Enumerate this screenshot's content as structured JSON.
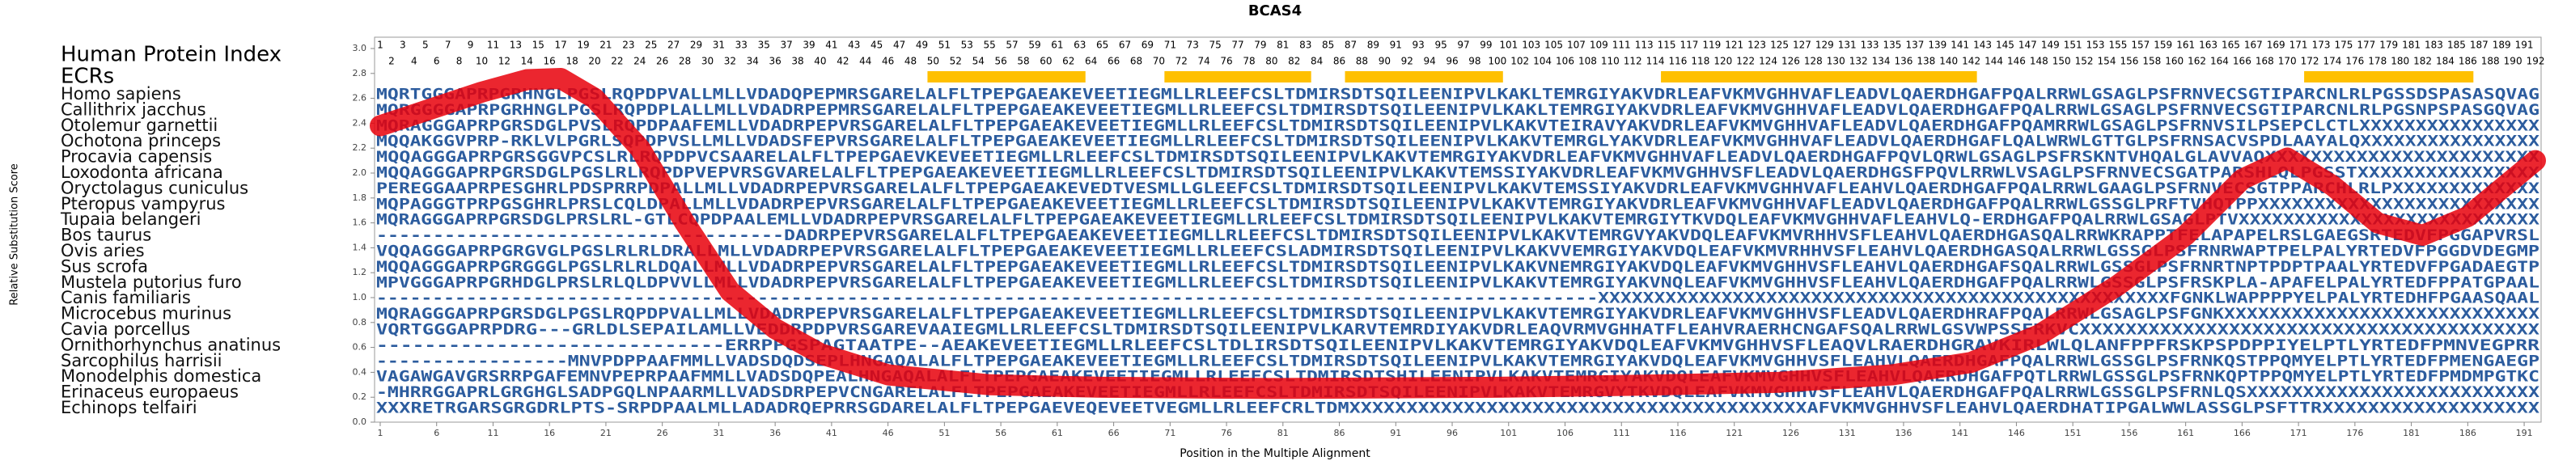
{
  "chart_data": {
    "type": "alignment",
    "title": "BCAS4",
    "xlabel": "Position in the Multiple Alignment",
    "ylabel": "Relative Substitution Score",
    "index_label": "Human Protein Index",
    "ecr_label": "ECRs",
    "xlim": [
      0.5,
      192.5
    ],
    "ylim": [
      0,
      3
    ],
    "xticks": [
      1,
      6,
      11,
      16,
      21,
      26,
      31,
      36,
      41,
      46,
      51,
      56,
      61,
      66,
      71,
      76,
      81,
      86,
      91,
      96,
      101,
      106,
      111,
      116,
      121,
      126,
      131,
      136,
      141,
      146,
      151,
      156,
      161,
      166,
      171,
      176,
      181,
      186,
      191
    ],
    "yticks": [
      {
        "value": 0,
        "label": "0.0"
      },
      {
        "value": 0.2,
        "label": "0.2"
      },
      {
        "value": 0.4,
        "label": "0.4"
      },
      {
        "value": 0.6,
        "label": "0.6"
      },
      {
        "value": 0.8,
        "label": "0.8"
      },
      {
        "value": 1,
        "label": "1.0"
      },
      {
        "value": 1.2,
        "label": "1.2"
      },
      {
        "value": 1.4,
        "label": "1.4"
      },
      {
        "value": 1.6,
        "label": "1.6"
      },
      {
        "value": 1.8,
        "label": "1.8"
      },
      {
        "value": 2,
        "label": "2.0"
      },
      {
        "value": 2.2,
        "label": "2.2"
      },
      {
        "value": 2.4,
        "label": "2.4"
      },
      {
        "value": 2.6,
        "label": "2.6"
      },
      {
        "value": 2.8,
        "label": "2.8"
      },
      {
        "value": 3,
        "label": "3.0"
      }
    ],
    "protein_index": [
      1,
      2,
      3,
      4,
      5,
      6,
      7,
      8,
      9,
      10,
      11,
      12,
      13,
      14,
      15,
      16,
      17,
      18,
      19,
      20,
      21,
      22,
      23,
      24,
      25,
      26,
      27,
      28,
      29,
      30,
      31,
      32,
      33,
      34,
      35,
      36,
      37,
      38,
      39,
      40,
      41,
      42,
      43,
      44,
      45,
      46,
      47,
      48,
      49,
      50,
      51,
      52,
      53,
      54,
      55,
      56,
      57,
      58,
      59,
      60,
      61,
      62,
      63,
      64,
      65,
      66,
      67,
      68,
      69,
      70,
      71,
      72,
      73,
      74,
      75,
      76,
      77,
      78,
      79,
      80,
      81,
      82,
      83,
      84,
      85,
      86,
      87,
      88,
      89,
      90,
      91,
      92,
      93,
      94,
      95,
      96,
      97,
      98,
      99,
      100,
      101,
      102,
      103,
      104,
      105,
      106,
      107,
      108,
      109,
      110,
      111,
      112,
      113,
      114,
      115,
      116,
      117,
      118,
      119,
      120,
      121,
      122,
      123,
      124,
      125,
      126,
      127,
      128,
      129,
      130,
      131,
      132,
      133,
      134,
      135,
      136,
      137,
      138,
      139,
      140,
      141,
      142,
      143,
      144,
      145,
      146,
      147,
      148,
      149,
      150,
      151,
      152,
      153,
      154,
      155,
      156,
      157,
      158,
      159,
      160,
      161,
      162,
      163,
      164,
      165,
      166,
      167,
      168,
      169,
      170,
      171,
      172,
      173,
      174,
      175,
      176,
      177,
      178,
      179,
      180,
      181,
      182,
      183,
      184,
      185,
      186,
      187,
      188,
      189,
      190,
      191,
      192
    ],
    "ecrs": [
      [
        50,
        63
      ],
      [
        71,
        83
      ],
      [
        87,
        100
      ],
      [
        115,
        142
      ],
      [
        172,
        186
      ]
    ],
    "ecr_color": "#ffc000",
    "rows": [
      {
        "species": "Homo sapiens",
        "sequence": "MQRTGGGAPRPGRHNGLPGSLRQPDPVALLMLLVDADQPEPMRSGARELALFLTPEPGAEAKEVEETIEGMLLRLEEFCSLTDMIRSDTSQILEENIPVLKAKLTEMRGIYAKVDRLEAFVKMVGHHVAFLEADVLQAERDHGAFPQALRRWLGSAGLPSFRNVECSGTIPARCNLRLPGSSDSPASASQVAG"
      },
      {
        "species": "Callithrix jacchus",
        "sequence": "MQRGGGGAPRPGRHNGLPGSLRQPDPLALLMLLVDADRPEPMRSGARELALFLTPEPGAEAKEVEETIEGMLLRLEEFCSLTDMIRSDTSQILEENIPVLKAKLTEMRGIYAKVDRLEAFVKMVGHHVAFLEADVLQAERDHGAFPQALRRWLGSAGLPSFRNVECSGTIPARCNLRLPGSNPSPASGQVAG"
      },
      {
        "species": "Otolemur garnettii",
        "sequence": "MQRAGGGAPRPGRSDGLPVSLRQPDPAAFEMLLVDADRPEPVRSGARELALFLTPEPGAEAKEVEETIEGMLLRLEEFCSLTDMIRSDTSQILEENIPVLKAKVTEIRAVYAKVDRLEAFVKMVGHHVAFLEADVLQAERDHGAFPQAMRRWLGSAGLPSFRNVSILPSEPCLCTLXXXXXXXXXXXXXXXX"
      },
      {
        "species": "Ochotona princeps",
        "sequence": "MQQAKGGVPRP-RKLVLPGRLSQPDPVSLLMLLVDADSFEPVRSGARELALFLTPEPGAEAKEVEETIEGMLLRLEEFCSLTDMIRSDTSQILEENIPVLKAKVTEMRGLYAKVDRLEAFVKMVGHHVAFLEADVLQAERDHGAFLQALWRWLGTTGLPSFRNSACVSPDLAAYALQXXXXXXXXXXXXXXXX"
      },
      {
        "species": "Procavia capensis",
        "sequence": "MQQAGGGAPRPGRSGGVPCSLRLRQPDPVCSAARELALFLTPEPGAEVKEVEETIEGMLLRLEEFCSLTDMIRSDTSQILEENIPVLKAKVTEMRGIYAKVDRLEAFVKMVGHHVAFLEADVLQAERDHGAFPQVLQRWLGSAGLPSFRSKNTVHQALGLAVVAQXXXXXXXXXXXXXXXXXXXXXXXX"
      },
      {
        "species": "Loxodonta africana",
        "sequence": "MQQAGGGAPRPGRSDGLPGSLRLRQPDPVEPVRSGVARELALFLTPEPGAEAKEVEETIEGMLLRLEEFCSLTDMIRSDTSQILEENIPVLKAKVTEMSSIYAKVDRLEAFVKMVGHHVSFLEADVLQAERDHGSFPQVLRRWLVSAGLPSFRNVECSGATPARSHLQLPGSSTXXXXXXXXXXXXXXXX"
      },
      {
        "species": "Oryctolagus cuniculus",
        "sequence": "PEREGGAAPRPESGHRLPDSPRRPDPALLMLLVDADRPEPVRSGARELALFLTPEPGAEAKEVEDTVESMLLGLEEFCSLTDMIRSDTSQILEENIPVLKAKVTEMSSIYAKVDRLEAFVKMVGHHVAFLEAHVLQAERDHGAFPQALRRWLGAAGLPSFRNVECSGTPPARCHLRLPXXXXXXXXXXXXX"
      },
      {
        "species": "Pteropus vampyrus",
        "sequence": "MQPAGGGTPRPGSGHRLPRSLCQLDPALLMLLVDADRPEPVRSGARELALFLTPEPGAEAKEVEETIEGMLLRLEEFCSLTDMIRSDTSQILEENIPVLKAKVTEMRGIYAKVDRLEAFVKMVGHHVAFLEADVLQAERDHGAFPQALRRWLGSSGLPRFTVHQTPPXXXXXXXXXXXXXXXXXXXXXXXXX"
      },
      {
        "species": "Tupaia belangeri",
        "sequence": "MQRAGGGAPRPGRSDGLPRSLRL-GTLCQPDPAALEMLLVDADRPEPVRSGARELALFLTPEPGAEAKEVEETIEGMLLRLEEFCSLTDMIRSDTSQILEENIPVLKAKVTEMRGIYTKVDQLEAFVKMVGHHVAFLEAHVLQ-ERDHGAFPQALRRWLGSAGLPTVXXXXXXXXXXXXXXXXXXXXXXXXXXX"
      },
      {
        "species": "Bos taurus",
        "sequence": "------------------------------------DADRPEPVRSGARELALFLTPEPGAEAKEVEETIEGMLLRLEEFCSLTDMIRSDTSQILEENIPVLKAKVTEMRGVYAKVDQLEAFVKMVRHHVSFLEAHVLQAERDHGASQALRRWKRAPPTFELAPAPELRSLGAEGSRTEDVFPGGAPVRSL"
      },
      {
        "species": "Ovis aries",
        "sequence": "VQQAGGGAPRPGRGVGLPGSLRLRLDRALLMLLVDADRPEPVRSGARELALFLTPEPGAEAKEVEETIEGMLLRLEEFCSLADMIRSDTSQILEENIPVLKAKVVEMRGIYAKVDQLEAFVKMVRHHVSFLEAHVLQAERDHGASQALRRWLGSSGLPSFRNRWAPTPELPALYRTEDVFPGGDVDEGMP"
      },
      {
        "species": "Sus scrofa",
        "sequence": "MQQAGGGAPRPGRGGGLPGSLRLRLDQALLMLLVDADRPEPVRSGARELALFLTPEPGAEAKEVEETIEGMLLRLEEFCSLTDMIRSDTSQILEENIPVLKAKVNEMRGIYAKVDQLEAFVKMVGHHVSFLEAHVLQAERDHGAFSQALRRWLGSSGLPSFRNRTNPTPDPTPAALYRTEDVFPGADAEGTP"
      },
      {
        "species": "Mustela putorius furo",
        "sequence": "MPVGGGAPRPGRHDGLPRSLRLQLDPVVLLMLLVDADRPEPVRSGARELALFLTPEPGAEAKEVEETIEGMLLRLEEFCSLTDMIRSDTSQILEENIPVLKAKVTEMRGIYAKVNQLEAFVKMVGHHVSFLEAHVLQAERDHGAFPQALRRWLGSSGLPSFRSKPLA-APAFELPALYRTEDFPPATGPAAL"
      },
      {
        "species": "Canis familiaris",
        "sequence": "-------------------------------------------------------------------------------------------------------------XXXXXXXXXXXXXXXXXXXXXXXXXXXXXXXXXXXXXXXXXXXXXXXXXXXFGNKLWAPPPPYELPALYRTEDHFPGAASQAAL"
      },
      {
        "species": "Microcebus murinus",
        "sequence": "MQRAGGGAPRPGRSDGLPGSLRQPDPVALLMLLVDADRPEPVRSGARELALFLTPEPGAEAKEVEETIEGMLLRLEEFCSLTDMIRSDTSQILEENIPVLKAKVTEMRGIYAKVDRLEAFVKMVGHHVSFLEADVLQAERDHRAFPQALRRWLGSAGLPSFGNKXXXXXXXXXXXXXXXXXXXXXXXXXXXX"
      },
      {
        "species": "Cavia porcellus",
        "sequence": "VQRTGGGAPRPDRG---GRLDLSEPAILAMLLVEDDRPDPVRSGAREVAAIEGMLLRLEEFCSLTDMIRSDTSQILEENIPVLKARVTEMRDIYAKVDRLEAQVRMVGHHATFLEAHVRAERHCNGAFSQALRRWLGSVWPSSFRKVCXXXXXXXXXXXXXXXXXXXXXXXXXXXXXXXXXXXXXXXX"
      },
      {
        "species": "Ornithorhynchus anatinus",
        "sequence": "-----------------------------ERRPPGSPAGTAATPE--AEAKEVEETIEGMLLRLEEFCSLTDLIRSDTSQILEENIPVLKAKVTEMRGIYAKVDQLEAFVKMVGHHVSFLEAQVLRAERDHGRAVKIRLWLQLANFPPFRSKPSPDPPIYELPTLYRTEDFPMNVEGPRR"
      },
      {
        "species": "Sarcophilus harrisii",
        "sequence": "-----------------MNVPDPPAAFMMLLVADSDQDSEPLHNGAQALALFLTPEPGAEAKEVEETIEGMLLRLEEFCSLTDMIRSDTSQILEENIPVLKAKVTEMRGIYAKVDQLEAFVKMVGHHVSFLEAHVLQAERDHGAFPQALRRWLGSSGLPSFRNKQSTPPQMYELPTLYRTEDFPMENGAEGP"
      },
      {
        "species": "Monodelphis domestica",
        "sequence": "VAGAWGAVGRSRRPGAFEMNVPEPRPAAFMMLLVADSDQPEALHNGAQALALFLTPEPGAEAKEVEETIEGMLLRLEEFCSLTDMIRSDTSHILEENIPVLKAKVTEMRGIYAKVDQLEAFVKMVGHHVSFLEAHVLQAERDHGAFPQTLRRWLGSSGLPSFRNKQPTPPQMYELPTLYRTEDFPMDMPGTKC"
      },
      {
        "species": "Erinaceus europaeus",
        "sequence": "-MHRRGGAPRLGRGHGLSADPGQLNPAARMLLVADSDRPEPVCNGARELALFLTPEPGAEAKEVEETIEGMLLRLEEFCSLTDMIRSDTSQILEENIPVLKAKVTEMRGVYTKVDQLEAFVKMVGHHVSFLEAHVLQAERDHGAFPQALRRWLGSSGLPSFRNLQSXXXXXXXXXXXXXXXXXXXXXXXXXX"
      },
      {
        "species": "Echinops telfairi",
        "sequence": "XXXRETRGARSGRGDRLPTS-SRPDPAALMLLADADRQEPRRSGDARELALFLTPEPGAEVEQEVEETVEGMLLRLEEFCRLTDMXXXXXXXXXXXXXXXXXXXXXXXXXXXXXXXXXXXXXXXXAFVKMVGHHVSFLEAHVLQAERDHATIPGALWWLASSGLPSFTTRXXXXXXXXXXXXXXXXXXX"
      }
    ],
    "sequence_color": "#2c5c9e",
    "score": {
      "color": "#e8000b",
      "x": [
        1,
        5,
        10,
        14,
        17,
        20,
        24,
        28,
        32,
        36,
        40,
        46,
        55,
        65,
        80,
        100,
        115,
        125,
        135,
        142,
        148,
        155,
        161,
        166,
        170,
        174,
        178,
        182,
        186,
        190,
        192
      ],
      "values": [
        2.38,
        2.5,
        2.65,
        2.75,
        2.76,
        2.6,
        2.2,
        1.6,
        1.05,
        0.75,
        0.55,
        0.38,
        0.3,
        0.28,
        0.27,
        0.28,
        0.3,
        0.32,
        0.38,
        0.48,
        0.7,
        1.1,
        1.5,
        1.95,
        2.12,
        1.9,
        1.6,
        1.5,
        1.65,
        1.95,
        2.1
      ]
    }
  }
}
